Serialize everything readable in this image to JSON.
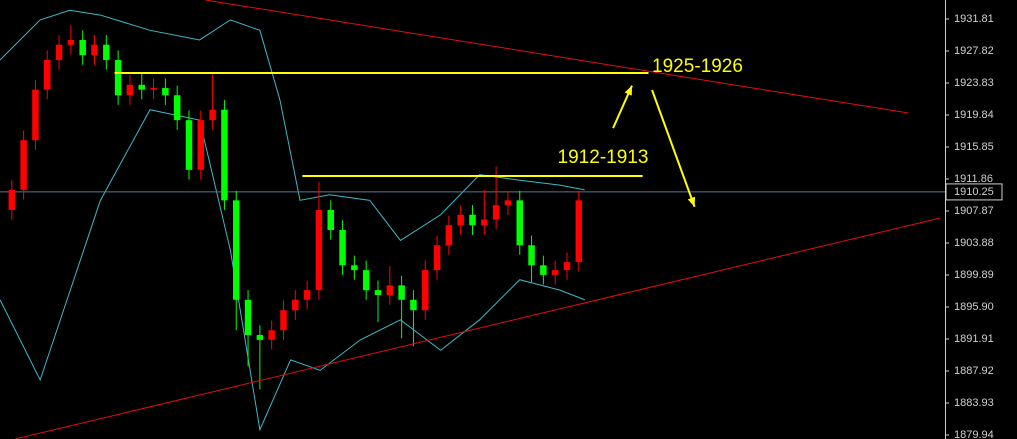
{
  "chart_data": {
    "type": "candlestick",
    "up_color": "#ff0000",
    "down_color": "#00ff00",
    "x": [
      1,
      2,
      3,
      4,
      5,
      6,
      7,
      8,
      9,
      10,
      11,
      12,
      13,
      14,
      15,
      16,
      17,
      18,
      19,
      20,
      21,
      22,
      23,
      24,
      25,
      26,
      27,
      28,
      29,
      30,
      31,
      32,
      33,
      34,
      35,
      36,
      37,
      38,
      39,
      40,
      41,
      42,
      43,
      44,
      45,
      46,
      47,
      48,
      49
    ],
    "ohlc": [
      [
        1908.0,
        1911.7,
        1906.8,
        1910.5
      ],
      [
        1910.5,
        1917.9,
        1909.3,
        1916.7
      ],
      [
        1916.7,
        1924.2,
        1915.5,
        1923.0
      ],
      [
        1923.0,
        1927.9,
        1921.8,
        1926.7
      ],
      [
        1926.7,
        1929.8,
        1925.5,
        1928.6
      ],
      [
        1928.6,
        1931.0,
        1927.4,
        1929.2
      ],
      [
        1929.2,
        1930.4,
        1926.1,
        1927.3
      ],
      [
        1927.3,
        1929.8,
        1926.1,
        1928.6
      ],
      [
        1928.6,
        1929.8,
        1925.5,
        1926.7
      ],
      [
        1926.7,
        1927.9,
        1921.1,
        1922.3
      ],
      [
        1922.3,
        1924.8,
        1921.1,
        1923.6
      ],
      [
        1923.6,
        1925.0,
        1921.8,
        1923.0
      ],
      [
        1923.0,
        1924.4,
        1921.8,
        1923.2
      ],
      [
        1923.2,
        1924.4,
        1921.1,
        1922.3
      ],
      [
        1922.3,
        1923.5,
        1918.0,
        1919.2
      ],
      [
        1919.2,
        1920.4,
        1911.8,
        1913.0
      ],
      [
        1913.0,
        1920.4,
        1911.8,
        1919.2
      ],
      [
        1919.2,
        1924.9,
        1918.0,
        1920.5
      ],
      [
        1920.5,
        1921.7,
        1908.0,
        1909.2
      ],
      [
        1909.2,
        1910.4,
        1893.0,
        1896.8
      ],
      [
        1896.8,
        1898.0,
        1888.5,
        1892.4
      ],
      [
        1892.4,
        1893.6,
        1885.6,
        1891.8
      ],
      [
        1891.8,
        1894.2,
        1890.6,
        1893.0
      ],
      [
        1893.0,
        1896.7,
        1891.8,
        1895.5
      ],
      [
        1895.5,
        1898.0,
        1894.3,
        1896.8
      ],
      [
        1896.8,
        1899.2,
        1895.6,
        1898.0
      ],
      [
        1898.0,
        1911.5,
        1896.8,
        1908.0
      ],
      [
        1908.0,
        1909.2,
        1904.3,
        1905.5
      ],
      [
        1905.5,
        1906.7,
        1899.9,
        1901.1
      ],
      [
        1901.1,
        1902.3,
        1899.3,
        1900.5
      ],
      [
        1900.5,
        1901.7,
        1896.8,
        1898.0
      ],
      [
        1898.0,
        1899.2,
        1894.0,
        1897.4
      ],
      [
        1897.4,
        1901.0,
        1896.2,
        1898.6
      ],
      [
        1898.6,
        1899.8,
        1892.0,
        1896.8
      ],
      [
        1896.8,
        1898.0,
        1891.0,
        1895.5
      ],
      [
        1895.5,
        1901.7,
        1894.3,
        1900.5
      ],
      [
        1900.5,
        1904.8,
        1899.3,
        1903.6
      ],
      [
        1903.6,
        1907.3,
        1902.4,
        1906.1
      ],
      [
        1906.1,
        1908.6,
        1904.9,
        1907.4
      ],
      [
        1907.4,
        1908.6,
        1904.9,
        1906.1
      ],
      [
        1906.1,
        1910.5,
        1904.9,
        1906.8
      ],
      [
        1906.8,
        1913.4,
        1905.6,
        1908.6
      ],
      [
        1908.6,
        1910.4,
        1907.4,
        1909.2
      ],
      [
        1909.2,
        1910.4,
        1902.4,
        1903.6
      ],
      [
        1903.6,
        1904.8,
        1899.0,
        1901.1
      ],
      [
        1901.1,
        1902.3,
        1898.7,
        1899.9
      ],
      [
        1899.9,
        1901.7,
        1898.7,
        1900.5
      ],
      [
        1900.5,
        1902.7,
        1899.3,
        1901.5
      ],
      [
        1901.5,
        1910.4,
        1900.3,
        1909.2
      ]
    ],
    "bands": [
      {
        "color": "#3fb8c8",
        "x": [
          0,
          3.4,
          5.9,
          8.5,
          12.7,
          16.9,
          19.5,
          22,
          23.7,
          25.4,
          27.9,
          31.3,
          33.9,
          37.3,
          40.6,
          44,
          47.4,
          49.5
        ],
        "values": [
          1926.7,
          1931.7,
          1932.9,
          1932.3,
          1930.4,
          1929.2,
          1931.7,
          1930.4,
          1921.7,
          1909.2,
          1909.9,
          1909.2,
          1904.2,
          1907.4,
          1912.4,
          1911.7,
          1911.1,
          1910.5
        ]
      },
      {
        "color": "#3fb8c8",
        "x": [
          0,
          3.4,
          8.5,
          12.7,
          16.9,
          19.5,
          22,
          24.6,
          27.1,
          30.5,
          33.9,
          37.3,
          40.6,
          44,
          47.4,
          49.5
        ],
        "values": [
          1896.8,
          1886.8,
          1909.2,
          1920.5,
          1919.2,
          1903.0,
          1880.6,
          1889.3,
          1888.0,
          1891.8,
          1894.3,
          1890.5,
          1894.3,
          1899.3,
          1898.0,
          1896.8
        ]
      }
    ],
    "trendlines": [
      {
        "color": "#e01010",
        "x": [
          17.4,
          76.9
        ],
        "y": [
          1934.18,
          1920.09
        ]
      },
      {
        "color": "#e01010",
        "x": [
          1.3,
          79.6
        ],
        "y": [
          1879.44,
          1907.0
        ]
      }
    ],
    "hlines": [
      {
        "color": "#ffff00",
        "x": [
          9.7,
          54.9
        ],
        "y": 1925.08
      },
      {
        "color": "#ffff00",
        "x": [
          25.6,
          54.4
        ],
        "y": 1912.24
      }
    ],
    "arrows": [
      {
        "color": "#ffff00",
        "x": [
          51.9,
          53.5
        ],
        "y": [
          1918.2,
          1923.5
        ]
      },
      {
        "color": "#ffff00",
        "x": [
          55.2,
          58.8
        ],
        "y": [
          1922.96,
          1908.4
        ]
      }
    ],
    "annotations": [
      {
        "text": "1925-1926",
        "x": 55.2,
        "y": 1925.8,
        "color": "#ffff00"
      },
      {
        "text": "1912-1913",
        "x": 47.2,
        "y": 1914.5,
        "color": "#ffff00"
      }
    ],
    "last_price": 1910.25,
    "xlim": [
      0,
      80
    ],
    "ylim": [
      1879.44,
      1934.18
    ],
    "yticks": [
      1931.81,
      1927.82,
      1923.83,
      1919.84,
      1915.85,
      1911.86,
      1907.87,
      1903.88,
      1899.89,
      {
        "value": 1895.9,
        "label": "1895.90"
      },
      1891.91,
      1887.92,
      1883.93,
      1879.94
    ]
  }
}
